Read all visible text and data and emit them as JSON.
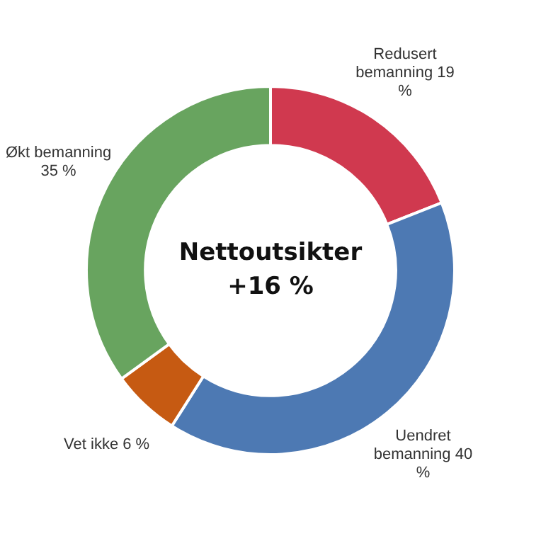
{
  "chart_data": {
    "type": "donut",
    "categories": [
      "Redusert bemanning",
      "Uendret bemanning",
      "Vet ikke",
      "Økt bemanning"
    ],
    "values": [
      19,
      40,
      6,
      35
    ],
    "value_labels": [
      "19 %",
      "40 %",
      "6 %",
      "35 %"
    ],
    "colors": [
      "#d0394f",
      "#4d79b3",
      "#c65a12",
      "#68a45f"
    ],
    "annotations": [
      "Nettoutsikter",
      "+16 %"
    ],
    "legend": false
  }
}
